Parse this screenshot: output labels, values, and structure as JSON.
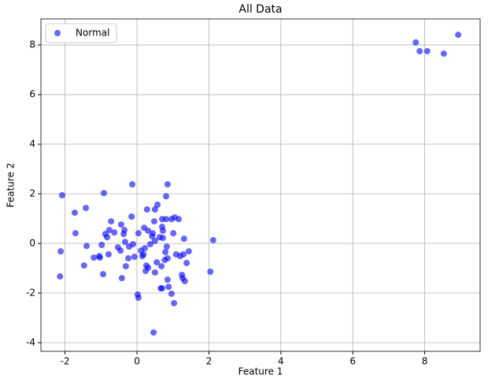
{
  "chart_data": {
    "type": "scatter",
    "title": "All Data",
    "x_label": "Feature 1",
    "y_label": "Feature 2",
    "xlim": [
      -2.67,
      9.54
    ],
    "ylim": [
      -4.35,
      9.05
    ],
    "xticks": [
      -2,
      0,
      2,
      4,
      6,
      8
    ],
    "yticks": [
      -4,
      -2,
      0,
      2,
      4,
      6,
      8
    ],
    "grid": true,
    "legend": "upper-left",
    "series": [
      {
        "name": "Normal",
        "color": "#0000ff",
        "x": [
          7.75,
          7.86,
          8.07,
          8.53,
          8.93,
          -2.08,
          -2.12,
          -2.14,
          -1.73,
          -1.71,
          -1.42,
          -1.4,
          -1.47,
          -1.2,
          -1.05,
          -1.03,
          -0.94,
          -0.92,
          -0.98,
          -0.88,
          -0.83,
          -0.77,
          -0.72,
          -0.79,
          -0.63,
          -0.53,
          -0.46,
          -0.44,
          -0.37,
          -0.35,
          -0.42,
          -0.31,
          -0.33,
          -0.24,
          -0.22,
          -0.15,
          -0.13,
          -0.11,
          -0.07,
          0.02,
          0.04,
          0.04,
          0.11,
          0.15,
          0.18,
          0.22,
          0.2,
          0.24,
          0.26,
          0.31,
          0.28,
          0.31,
          0.37,
          0.42,
          0.44,
          0.48,
          0.5,
          0.5,
          0.46,
          0.5,
          0.55,
          0.57,
          0.63,
          0.66,
          0.7,
          0.68,
          0.7,
          0.7,
          0.72,
          0.72,
          0.77,
          0.79,
          0.81,
          0.81,
          0.83,
          0.85,
          0.85,
          0.88,
          0.85,
          0.96,
          0.96,
          1.01,
          1.03,
          1.05,
          1.09,
          1.16,
          1.2,
          1.25,
          1.27,
          1.29,
          1.31,
          1.33,
          1.38,
          1.44,
          2.04,
          2.12
        ],
        "values": [
          8.1,
          7.75,
          7.75,
          7.65,
          8.41,
          1.94,
          -0.32,
          -1.33,
          1.24,
          0.41,
          1.43,
          -0.1,
          -0.89,
          -0.57,
          -0.51,
          -0.57,
          -1.24,
          2.03,
          -0.06,
          0.38,
          0.25,
          0.54,
          0.89,
          -0.44,
          0.44,
          -0.16,
          -0.29,
          0.76,
          0.38,
          0.54,
          -1.4,
          -0.92,
          0.06,
          -0.6,
          -0.13,
          1.08,
          2.38,
          -0.03,
          -0.54,
          -2.06,
          -2.19,
          0.41,
          -0.29,
          -0.51,
          -0.44,
          -0.19,
          0.63,
          -1.11,
          -0.89,
          -0.98,
          1.37,
          0.51,
          -0.03,
          0.29,
          0.41,
          0.89,
          1.37,
          0.1,
          -3.59,
          -1.17,
          -0.76,
          1.56,
          0.25,
          -1.81,
          -1.81,
          -0.92,
          0.98,
          0.67,
          0.51,
          0.22,
          -0.67,
          -0.35,
          0.98,
          1.9,
          -0.13,
          2.38,
          -1.46,
          -1.75,
          -0.6,
          0.98,
          -2.03,
          0.41,
          -2.41,
          1.05,
          -0.44,
          0.98,
          -0.51,
          -1.27,
          -1.4,
          -0.44,
          0.19,
          -1.52,
          -0.79,
          -0.32,
          -1.14,
          0.13
        ]
      }
    ]
  }
}
